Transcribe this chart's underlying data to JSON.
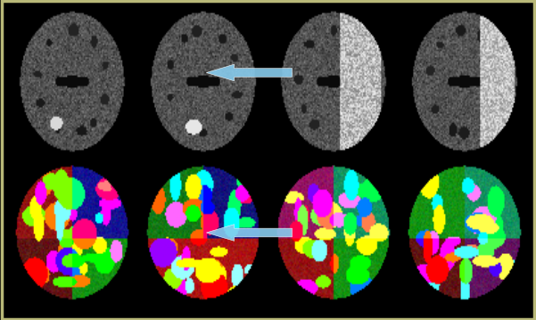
{
  "background_color": "#000000",
  "border_color": "#b8b878",
  "border_linewidth": 2.5,
  "arrow_color": "#88ccee",
  "num_panels": 4
}
